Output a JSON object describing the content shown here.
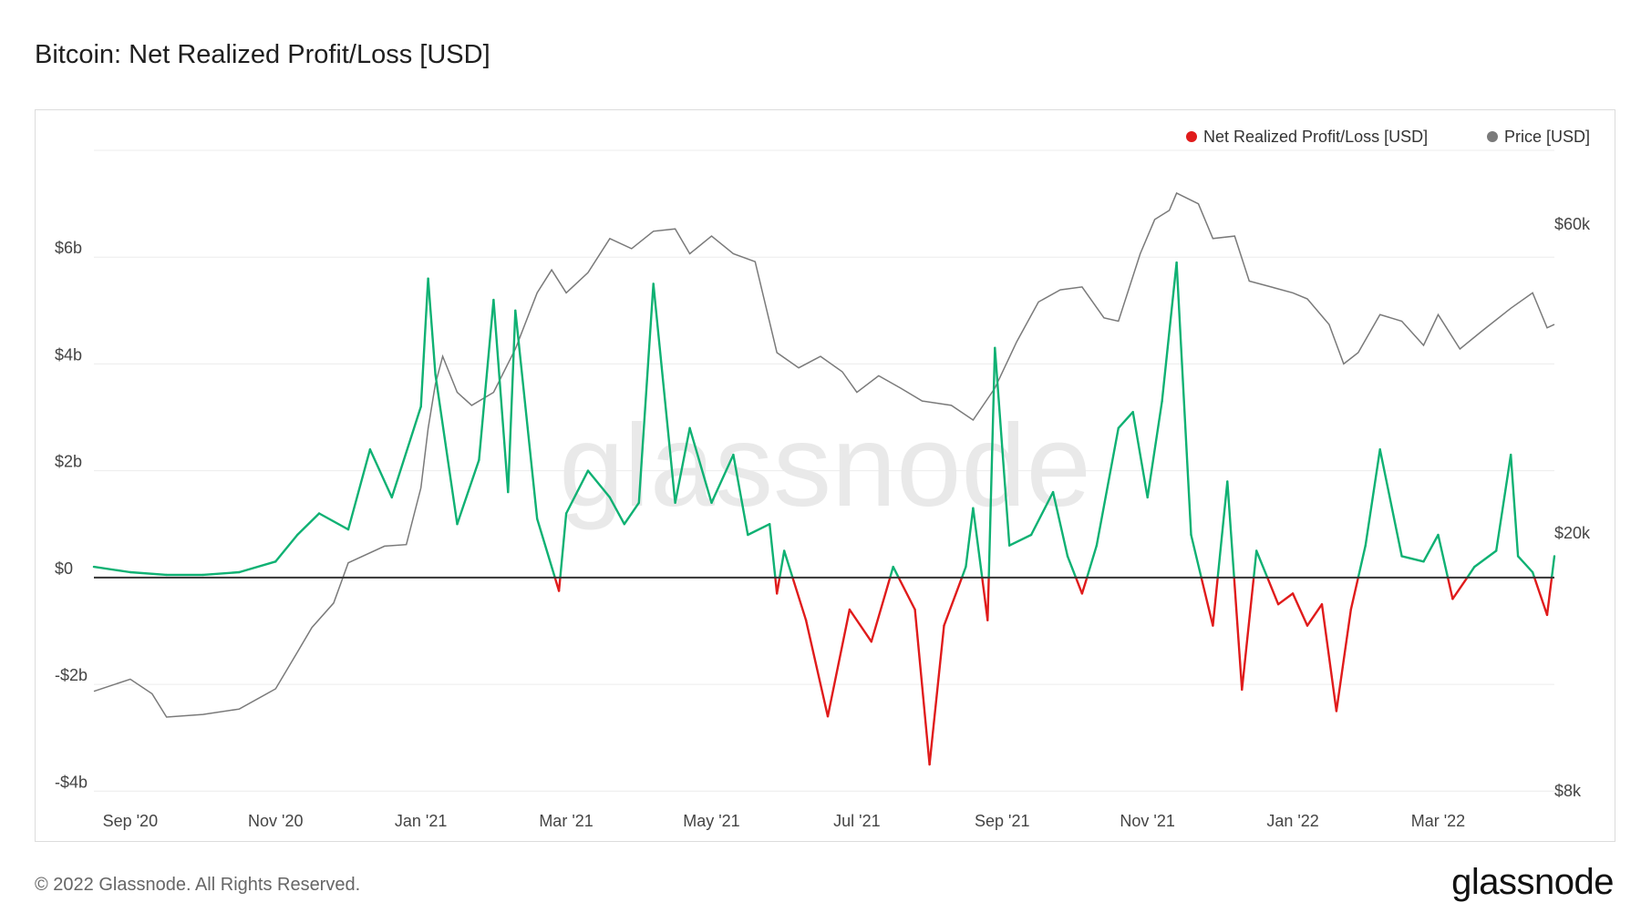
{
  "header": {
    "title": "Bitcoin: Net Realized Profit/Loss [USD]"
  },
  "footer": {
    "copyright": "© 2022 Glassnode. All Rights Reserved.",
    "brand": "glassnode"
  },
  "watermark": "glassnode",
  "colors": {
    "profit": "#0fb173",
    "loss": "#e01b1b",
    "price": "#7a7a7a",
    "zero": "#333333",
    "grid": "#ececec"
  },
  "chart_data": {
    "type": "line",
    "title": "Bitcoin: Net Realized Profit/Loss [USD]",
    "legend": {
      "position": "top-right",
      "entries": [
        {
          "name": "Net Realized Profit/Loss [USD]",
          "color": "#e01b1b"
        },
        {
          "name": "Price [USD]",
          "color": "#7a7a7a"
        }
      ]
    },
    "x_ticks": [
      "Sep '20",
      "Nov '20",
      "Jan '21",
      "Mar '21",
      "May '21",
      "Jul '21",
      "Sep '21",
      "Nov '21",
      "Jan '22",
      "Mar '22"
    ],
    "x_tick_months": [
      1,
      3,
      5,
      7,
      9,
      11,
      13,
      15,
      17,
      19
    ],
    "x_range_months": [
      0.5,
      20.6
    ],
    "y_left": {
      "ticks": [
        "$6b",
        "$4b",
        "$2b",
        "$0",
        "-$2b",
        "-$4b"
      ],
      "tick_values": [
        6,
        4,
        2,
        0,
        -2,
        -4
      ],
      "range": [
        -4.2,
        8.0
      ],
      "unit": "billion USD"
    },
    "y_right": {
      "ticks": [
        "$60k",
        "$20k",
        "$8k"
      ],
      "tick_values": [
        60000,
        20000,
        8000
      ],
      "scale": "log"
    },
    "series": [
      {
        "name": "Net Realized Profit/Loss [USD]",
        "unit": "billion USD",
        "points": [
          [
            0.5,
            0.2
          ],
          [
            1.0,
            0.1
          ],
          [
            1.5,
            0.05
          ],
          [
            2.0,
            0.05
          ],
          [
            2.5,
            0.1
          ],
          [
            3.0,
            0.3
          ],
          [
            3.3,
            0.8
          ],
          [
            3.6,
            1.2
          ],
          [
            4.0,
            0.9
          ],
          [
            4.3,
            2.4
          ],
          [
            4.6,
            1.5
          ],
          [
            5.0,
            3.2
          ],
          [
            5.1,
            5.6
          ],
          [
            5.2,
            3.8
          ],
          [
            5.5,
            1.0
          ],
          [
            5.8,
            2.2
          ],
          [
            6.0,
            5.2
          ],
          [
            6.2,
            1.6
          ],
          [
            6.3,
            5.0
          ],
          [
            6.6,
            1.1
          ],
          [
            6.9,
            -0.25
          ],
          [
            7.0,
            1.2
          ],
          [
            7.3,
            2.0
          ],
          [
            7.6,
            1.5
          ],
          [
            7.8,
            1.0
          ],
          [
            8.0,
            1.4
          ],
          [
            8.2,
            5.5
          ],
          [
            8.5,
            1.4
          ],
          [
            8.7,
            2.8
          ],
          [
            9.0,
            1.4
          ],
          [
            9.3,
            2.3
          ],
          [
            9.5,
            0.8
          ],
          [
            9.8,
            1.0
          ],
          [
            9.9,
            -0.3
          ],
          [
            10.0,
            0.5
          ],
          [
            10.3,
            -0.8
          ],
          [
            10.6,
            -2.6
          ],
          [
            10.9,
            -0.6
          ],
          [
            11.2,
            -1.2
          ],
          [
            11.5,
            0.2
          ],
          [
            11.8,
            -0.6
          ],
          [
            12.0,
            -3.5
          ],
          [
            12.2,
            -0.9
          ],
          [
            12.5,
            0.2
          ],
          [
            12.6,
            1.3
          ],
          [
            12.8,
            -0.8
          ],
          [
            12.9,
            4.3
          ],
          [
            13.1,
            0.6
          ],
          [
            13.4,
            0.8
          ],
          [
            13.7,
            1.6
          ],
          [
            13.9,
            0.4
          ],
          [
            14.1,
            -0.3
          ],
          [
            14.3,
            0.6
          ],
          [
            14.6,
            2.8
          ],
          [
            14.8,
            3.1
          ],
          [
            15.0,
            1.5
          ],
          [
            15.2,
            3.3
          ],
          [
            15.4,
            5.9
          ],
          [
            15.6,
            0.8
          ],
          [
            15.9,
            -0.9
          ],
          [
            16.1,
            1.8
          ],
          [
            16.3,
            -2.1
          ],
          [
            16.5,
            0.5
          ],
          [
            16.8,
            -0.5
          ],
          [
            17.0,
            -0.3
          ],
          [
            17.2,
            -0.9
          ],
          [
            17.4,
            -0.5
          ],
          [
            17.6,
            -2.5
          ],
          [
            17.8,
            -0.6
          ],
          [
            18.0,
            0.6
          ],
          [
            18.2,
            2.4
          ],
          [
            18.5,
            0.4
          ],
          [
            18.8,
            0.3
          ],
          [
            19.0,
            0.8
          ],
          [
            19.2,
            -0.4
          ],
          [
            19.5,
            0.2
          ],
          [
            19.8,
            0.5
          ],
          [
            20.0,
            2.3
          ],
          [
            20.1,
            0.4
          ],
          [
            20.3,
            0.1
          ],
          [
            20.5,
            -0.7
          ],
          [
            20.6,
            0.4
          ]
        ]
      },
      {
        "name": "Price [USD]",
        "unit": "USD",
        "points": [
          [
            0.5,
            11400
          ],
          [
            1.0,
            11900
          ],
          [
            1.3,
            11300
          ],
          [
            1.5,
            10400
          ],
          [
            2.0,
            10500
          ],
          [
            2.5,
            10700
          ],
          [
            3.0,
            11500
          ],
          [
            3.3,
            13100
          ],
          [
            3.5,
            14300
          ],
          [
            3.8,
            15600
          ],
          [
            4.0,
            18000
          ],
          [
            4.5,
            19100
          ],
          [
            4.8,
            19200
          ],
          [
            5.0,
            23500
          ],
          [
            5.1,
            29000
          ],
          [
            5.2,
            34000
          ],
          [
            5.3,
            37500
          ],
          [
            5.5,
            33000
          ],
          [
            5.7,
            31500
          ],
          [
            6.0,
            33000
          ],
          [
            6.3,
            38500
          ],
          [
            6.6,
            47000
          ],
          [
            6.8,
            51000
          ],
          [
            7.0,
            47000
          ],
          [
            7.3,
            50500
          ],
          [
            7.6,
            57000
          ],
          [
            7.9,
            55000
          ],
          [
            8.2,
            58500
          ],
          [
            8.5,
            59000
          ],
          [
            8.7,
            54000
          ],
          [
            9.0,
            57500
          ],
          [
            9.3,
            54000
          ],
          [
            9.6,
            52500
          ],
          [
            9.9,
            38000
          ],
          [
            10.2,
            36000
          ],
          [
            10.5,
            37500
          ],
          [
            10.8,
            35500
          ],
          [
            11.0,
            33000
          ],
          [
            11.3,
            35000
          ],
          [
            11.6,
            33500
          ],
          [
            11.9,
            32000
          ],
          [
            12.3,
            31500
          ],
          [
            12.6,
            29900
          ],
          [
            12.9,
            33500
          ],
          [
            13.2,
            39500
          ],
          [
            13.5,
            45500
          ],
          [
            13.8,
            47500
          ],
          [
            14.1,
            48000
          ],
          [
            14.4,
            43000
          ],
          [
            14.6,
            42500
          ],
          [
            14.9,
            54000
          ],
          [
            15.1,
            61000
          ],
          [
            15.3,
            63000
          ],
          [
            15.4,
            67000
          ],
          [
            15.7,
            64500
          ],
          [
            15.9,
            57000
          ],
          [
            16.2,
            57500
          ],
          [
            16.4,
            49000
          ],
          [
            16.7,
            48000
          ],
          [
            17.0,
            47000
          ],
          [
            17.2,
            46000
          ],
          [
            17.5,
            42000
          ],
          [
            17.7,
            36500
          ],
          [
            17.9,
            38000
          ],
          [
            18.2,
            43500
          ],
          [
            18.5,
            42500
          ],
          [
            18.8,
            39000
          ],
          [
            19.0,
            43500
          ],
          [
            19.3,
            38500
          ],
          [
            19.6,
            41000
          ],
          [
            20.0,
            44500
          ],
          [
            20.3,
            47000
          ],
          [
            20.5,
            41500
          ],
          [
            20.6,
            42000
          ]
        ]
      }
    ]
  }
}
